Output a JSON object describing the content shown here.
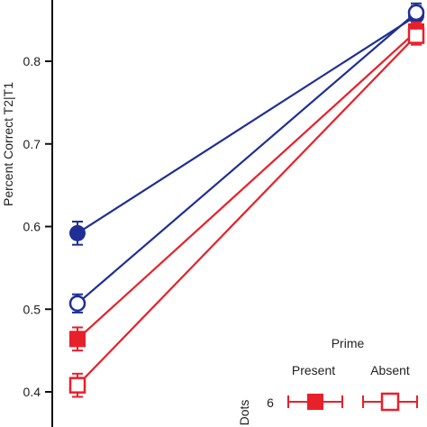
{
  "chart_data": {
    "type": "line",
    "title": "",
    "xlabel": "",
    "ylabel": "Percent Correct T2|T1",
    "ylim": [
      0.37,
      0.87
    ],
    "yticks": [
      "0.4",
      "0.5",
      "0.6",
      "0.7",
      "0.8"
    ],
    "grid": false,
    "colors": {
      "red": "#e8202a",
      "blue": "#1f2f96",
      "axis": "#111111"
    },
    "series": [
      {
        "color": "#1f2f96",
        "marker": "circle-filled",
        "values": [
          0.592,
          0.855
        ],
        "error": [
          0.014,
          0.012
        ]
      },
      {
        "color": "#1f2f96",
        "marker": "circle-open",
        "values": [
          0.507,
          0.859
        ],
        "error": [
          0.011,
          0.011
        ]
      },
      {
        "color": "#e8202a",
        "marker": "square-filled",
        "values": [
          0.464,
          0.836
        ],
        "error": [
          0.014,
          0.011
        ]
      },
      {
        "color": "#e8202a",
        "marker": "square-open",
        "values": [
          0.408,
          0.831
        ],
        "error": [
          0.014,
          0.011
        ]
      }
    ],
    "legend": {
      "position": "bottom-right",
      "title": "Prime",
      "column_headers": [
        "Present",
        "Absent"
      ],
      "row_header": "Dots",
      "row_label": "6"
    }
  }
}
